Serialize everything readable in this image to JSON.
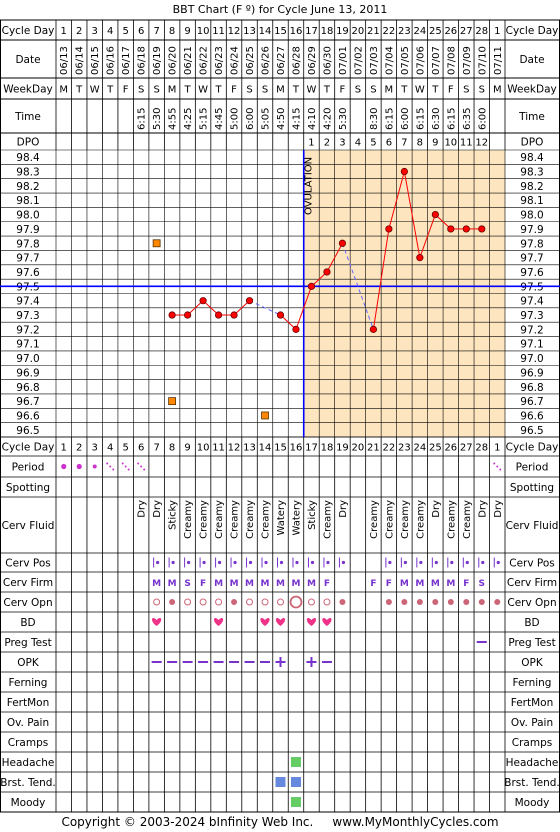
{
  "title": "BBT Chart (F º) for Cycle June 13, 2011",
  "copyright": "Copyright © 2003-2024 bInfinity Web Inc.     www.MyMonthlyCycles.com",
  "labels": {
    "cycle_day": "Cycle Day",
    "date": "Date",
    "weekday": "WeekDay",
    "time": "Time",
    "dpo": "DPO",
    "period": "Period",
    "spotting": "Spotting",
    "cerv_fluid": "Cerv Fluid",
    "cerv_pos": "Cerv Pos",
    "cerv_firm": "Cerv Firm",
    "cerv_opn": "Cerv Opn",
    "bd": "BD",
    "preg_test": "Preg Test",
    "opk": "OPK",
    "ferning": "Ferning",
    "fertmon": "FertMon",
    "ov_pain": "Ov. Pain",
    "cramps": "Cramps",
    "headache": "Headache",
    "brst_tend": "Brst. Tend.",
    "moody": "Moody"
  },
  "ovulation_label": "OVULATION",
  "colors": {
    "grid": "#000000",
    "luteal": "#fde5c0",
    "coverline": "#0000ff",
    "line": "#ff0000",
    "point": "#ff0000",
    "dashed": "#6666ff",
    "square": "#ff8800",
    "period": "#cc33cc",
    "green": "#66cc66",
    "blue": "#6688dd",
    "pink": "#ee3388",
    "opk": "#7733cc"
  },
  "chart_data": {
    "type": "line",
    "days": [
      "1",
      "2",
      "3",
      "4",
      "5",
      "6",
      "7",
      "8",
      "9",
      "10",
      "11",
      "12",
      "13",
      "14",
      "15",
      "16",
      "17",
      "18",
      "19",
      "20",
      "21",
      "22",
      "23",
      "24",
      "25",
      "26",
      "27",
      "28",
      "1"
    ],
    "dates": [
      "06/13",
      "06/14",
      "06/15",
      "06/16",
      "06/17",
      "06/18",
      "06/19",
      "06/20",
      "06/21",
      "06/22",
      "06/23",
      "06/24",
      "06/25",
      "06/26",
      "06/27",
      "06/28",
      "06/29",
      "06/30",
      "07/01",
      "07/02",
      "07/03",
      "07/04",
      "07/05",
      "07/06",
      "07/07",
      "07/08",
      "07/09",
      "07/10",
      "07/11"
    ],
    "weekdays": [
      "M",
      "T",
      "W",
      "T",
      "F",
      "S",
      "S",
      "M",
      "T",
      "W",
      "T",
      "F",
      "S",
      "S",
      "M",
      "T",
      "W",
      "T",
      "F",
      "S",
      "S",
      "M",
      "T",
      "W",
      "T",
      "F",
      "S",
      "S",
      "M"
    ],
    "times": [
      "",
      "",
      "",
      "",
      "",
      "6:15",
      "5:30",
      "4:55",
      "4:25",
      "5:15",
      "4:45",
      "5:00",
      "6:00",
      "5:05",
      "4:50",
      "4:15",
      "4:10",
      "4:20",
      "5:30",
      "",
      "8:30",
      "6:15",
      "6:00",
      "6:15",
      "6:30",
      "6:15",
      "6:35",
      "6:00",
      ""
    ],
    "dpo": [
      "",
      "",
      "",
      "",
      "",
      "",
      "",
      "",
      "",
      "",
      "",
      "",
      "",
      "",
      "",
      "",
      "1",
      "2",
      "3",
      "4",
      "5",
      "6",
      "7",
      "8",
      "9",
      "10",
      "11",
      "12",
      ""
    ],
    "temps": [
      null,
      null,
      null,
      null,
      null,
      null,
      null,
      97.3,
      97.3,
      97.4,
      97.3,
      97.3,
      97.4,
      null,
      97.3,
      97.2,
      97.5,
      97.6,
      97.8,
      null,
      97.2,
      97.9,
      98.3,
      97.7,
      98.0,
      97.9,
      97.9,
      97.9,
      null
    ],
    "discarded": [
      null,
      null,
      null,
      null,
      null,
      null,
      97.8,
      96.7,
      null,
      null,
      null,
      null,
      null,
      96.6,
      null,
      null,
      null,
      null,
      null,
      null,
      null,
      null,
      null,
      null,
      null,
      null,
      null,
      null,
      null
    ],
    "temp_axis": [
      "98.4",
      "98.3",
      "98.2",
      "98.1",
      "98.0",
      "97.9",
      "97.8",
      "97.7",
      "97.6",
      "97.5",
      "97.4",
      "97.3",
      "97.2",
      "97.1",
      "97.0",
      "96.9",
      "96.8",
      "96.7",
      "96.6",
      "96.5"
    ],
    "ylim": [
      96.5,
      98.4
    ],
    "coverline": 97.5,
    "ovulation_day": 16,
    "period": [
      "heavy",
      "heavy",
      "medium",
      "light",
      "light",
      "light",
      "",
      "",
      "",
      "",
      "",
      "",
      "",
      "",
      "",
      "",
      "",
      "",
      "",
      "",
      "",
      "",
      "",
      "",
      "",
      "",
      "",
      "",
      "light"
    ],
    "cerv_fluid": [
      "",
      "",
      "",
      "",
      "",
      "Dry",
      "Dry",
      "Sticky",
      "Creamy",
      "Creamy",
      "Creamy",
      "Creamy",
      "Creamy",
      "Creamy",
      "Watery",
      "Watery",
      "Sticky",
      "Creamy",
      "Dry",
      "",
      "Creamy",
      "Creamy",
      "Creamy",
      "Creamy",
      "Dry",
      "Creamy",
      "Creamy",
      "Dry",
      "Dry"
    ],
    "cerv_pos": [
      "",
      "",
      "",
      "",
      "",
      "",
      "pos",
      "pos",
      "pos",
      "pos",
      "pos",
      "pos",
      "pos",
      "pos",
      "pos",
      "pos",
      "pos",
      "pos",
      "pos",
      "",
      "",
      "pos",
      "pos",
      "pos",
      "pos",
      "pos",
      "pos",
      "pos",
      "pos"
    ],
    "cerv_firm": [
      "",
      "",
      "",
      "",
      "",
      "",
      "M",
      "M",
      "S",
      "F",
      "M",
      "M",
      "M",
      "M",
      "M",
      "M",
      "M",
      "F",
      "",
      "",
      "F",
      "F",
      "M",
      "M",
      "M",
      "M",
      "F",
      "S",
      ""
    ],
    "cerv_opn": [
      "",
      "",
      "",
      "",
      "",
      "",
      "o",
      "dot",
      "o",
      "o",
      "o",
      "dot",
      "o",
      "o",
      "o",
      "big",
      "o",
      "o",
      "dot",
      "",
      "",
      "dot",
      "dot",
      "dot",
      "dot",
      "dot",
      "dot",
      "dot",
      "dot"
    ],
    "bd": [
      "",
      "",
      "",
      "",
      "",
      "",
      "heart",
      "",
      "",
      "",
      "heart",
      "",
      "",
      "heart",
      "heart",
      "",
      "heart",
      "heart",
      "",
      "",
      "",
      "",
      "",
      "",
      "",
      "",
      "",
      "",
      ""
    ],
    "preg_test": [
      "",
      "",
      "",
      "",
      "",
      "",
      "",
      "",
      "",
      "",
      "",
      "",
      "",
      "",
      "",
      "",
      "",
      "",
      "",
      "",
      "",
      "",
      "",
      "",
      "",
      "",
      "",
      "neg",
      ""
    ],
    "opk": [
      "",
      "",
      "",
      "",
      "",
      "",
      "neg",
      "neg",
      "neg",
      "neg",
      "neg",
      "neg",
      "neg",
      "neg",
      "pos",
      "",
      "pos",
      "neg",
      "",
      "",
      "",
      "",
      "",
      "",
      "",
      "",
      "",
      "",
      ""
    ],
    "headache": [
      16
    ],
    "brst_tend": [
      15,
      16
    ],
    "moody": [
      16
    ]
  }
}
